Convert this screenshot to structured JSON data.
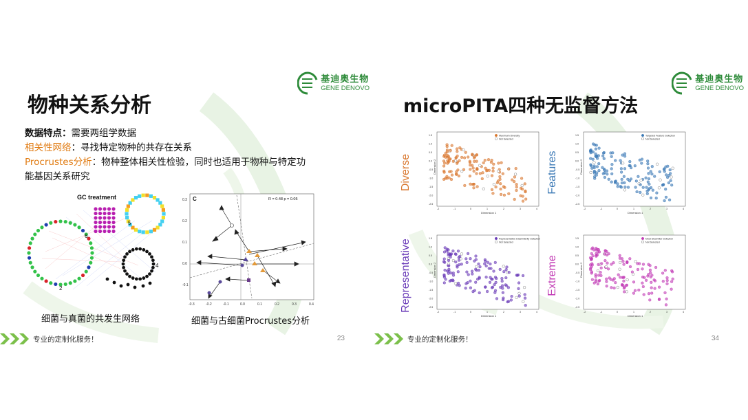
{
  "left_slide": {
    "title": "物种关系分析",
    "logo_cn": "基迪奥生物",
    "logo_en": "GENE DENOVO",
    "feature_label": "数据特点：",
    "feature_text": "需要两组学数据",
    "correlation_label": "相关性网络",
    "correlation_text": "：寻找特定物种的共存在关系",
    "procrustes_label": "Procrustes分析",
    "procrustes_text_1": "：物种整体相关性检验，同时也适用于物种与特定功",
    "procrustes_text_2": "能基因关系研究",
    "network_title": "GC treatment",
    "network_labels": [
      "5",
      "4",
      "6",
      "2"
    ],
    "network_caption": "细菌与真菌的共发生网络",
    "procrustes_panel": "C",
    "procrustes_stat": "R = 0.48 p = 0.05",
    "procrustes_yticks": [
      "0.3",
      "0.2",
      "0.1",
      "0.0",
      "-0.1"
    ],
    "procrustes_xticks": [
      "-0.3",
      "-0.2",
      "-0.1",
      "0.0",
      "0.1",
      "0.2",
      "0.3",
      "0.4"
    ],
    "procrustes_caption": "细菌与古细菌Procrustes分析",
    "footer_text": "专业的定制化服务！",
    "page_number": "23"
  },
  "right_slide": {
    "title": "microPITA四种无监督方法",
    "logo_cn": "基迪奥生物",
    "logo_en": "GENE DENOVO",
    "footer_text": "专业的定制化服务！",
    "page_number": "34",
    "panels": [
      {
        "label": "Diverse",
        "color": "#d9772e",
        "legend1": "Maximum Diversity",
        "legend2": "Not Selected",
        "xlabel": "Dimension 1",
        "ylabel": "Dimension 2"
      },
      {
        "label": "Features",
        "color": "#3a78b5",
        "legend1": "Targeted Feature Selection",
        "legend2": "Not Selected",
        "xlabel": "Dimension 1",
        "ylabel": "Dimension 2"
      },
      {
        "label": "Representative",
        "color": "#6a3bb8",
        "legend1": "Representative Dissimilarity Selection",
        "legend2": "Not Selected",
        "xlabel": "Dimension 1",
        "ylabel": "Dimension 2"
      },
      {
        "label": "Extreme",
        "color": "#c23bb5",
        "legend1": "Most Dissimilar Selection",
        "legend2": "Not Selected",
        "xlabel": "Dimension 1",
        "ylabel": "Dimension 2"
      }
    ],
    "xticks": [
      "-2",
      "-1",
      "0",
      "1",
      "2",
      "3",
      "4"
    ],
    "yticks": [
      "1.5",
      "1.0",
      "0.5",
      "0.0",
      "-0.5",
      "-1.0",
      "-1.5",
      "-2.0",
      "-2.5"
    ]
  },
  "colors": {
    "accent_green": "#2e8b3a",
    "orange": "#e07a10",
    "chevron": "#7cc04b"
  }
}
